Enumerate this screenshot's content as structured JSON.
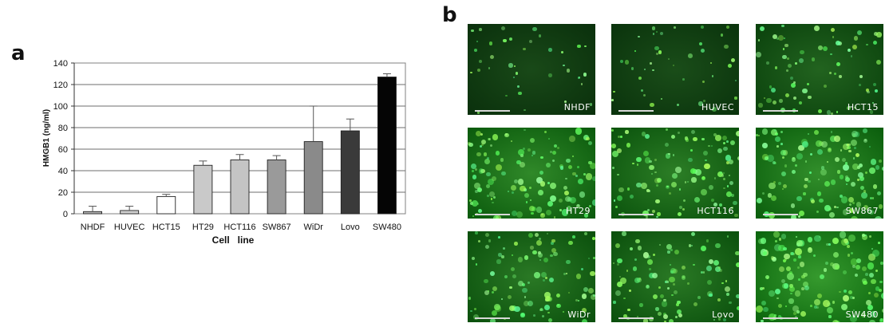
{
  "panel_a": {
    "letter": "a"
  },
  "panel_b": {
    "letter": "b"
  },
  "chart_data": {
    "type": "bar",
    "title": "",
    "xlabel": "Cell   line",
    "ylabel": "HMGB1 (ng/ml)",
    "ylim": [
      0,
      140
    ],
    "yticks": [
      0,
      20,
      40,
      60,
      80,
      100,
      120,
      140
    ],
    "grid": true,
    "categories": [
      "NHDF",
      "HUVEC",
      "HCT15",
      "HT29",
      "HCT116",
      "SW867",
      "WiDr",
      "Lovo",
      "SW480"
    ],
    "values": [
      2,
      3,
      16,
      45,
      50,
      50,
      67,
      77,
      127
    ],
    "errors": [
      5,
      4,
      2,
      4,
      5,
      4,
      33,
      11,
      3
    ],
    "bar_colors": [
      "#b4b4b4",
      "#cfcfcf",
      "#ffffff",
      "#c9c9c9",
      "#c4c4c4",
      "#9a9a9a",
      "#8a8a8a",
      "#3a3a3a",
      "#050505"
    ]
  },
  "micrographs": [
    {
      "label": "NHDF",
      "intensity": 0.12
    },
    {
      "label": "HUVEC",
      "intensity": 0.15
    },
    {
      "label": "HCT15",
      "intensity": 0.35
    },
    {
      "label": "HT29",
      "intensity": 0.7
    },
    {
      "label": "HCT116",
      "intensity": 0.6
    },
    {
      "label": "SW867",
      "intensity": 0.75
    },
    {
      "label": "WiDr",
      "intensity": 0.55
    },
    {
      "label": "Lovo",
      "intensity": 0.55
    },
    {
      "label": "SW480",
      "intensity": 0.85
    }
  ]
}
